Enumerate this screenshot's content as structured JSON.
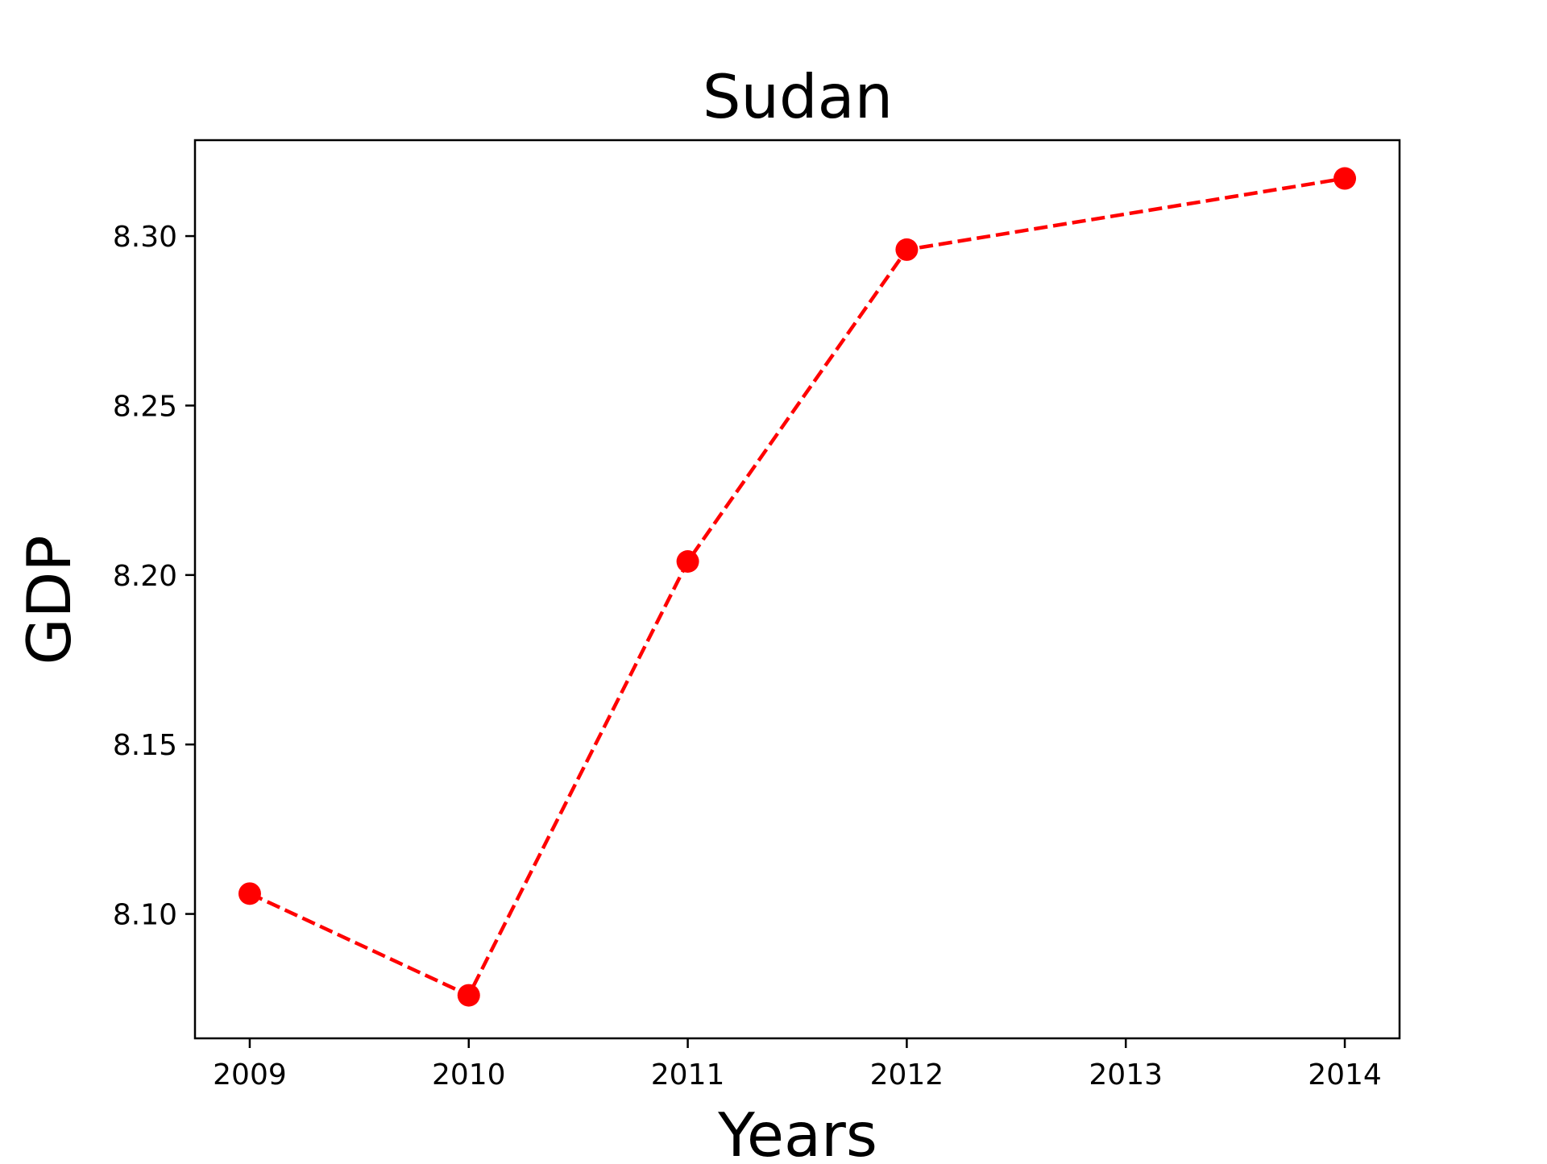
{
  "chart_data": {
    "type": "line",
    "title": "Sudan",
    "xlabel": "Years",
    "ylabel": "GDP",
    "x": [
      2009,
      2010,
      2011,
      2012,
      2014
    ],
    "series": [
      {
        "values": [
          8.106,
          8.076,
          8.204,
          8.296,
          8.317
        ],
        "color": "#ff0000",
        "line_style": "dashed",
        "marker": "circle"
      }
    ],
    "xticks": [
      "2009",
      "2010",
      "2011",
      "2012",
      "2013",
      "2014"
    ],
    "yticks": [
      "8.10",
      "8.15",
      "8.20",
      "8.25",
      "8.30"
    ],
    "xlim": [
      2008.75,
      2014.25
    ],
    "ylim": [
      8.0633,
      8.3283
    ],
    "grid": false,
    "legend": "none"
  }
}
